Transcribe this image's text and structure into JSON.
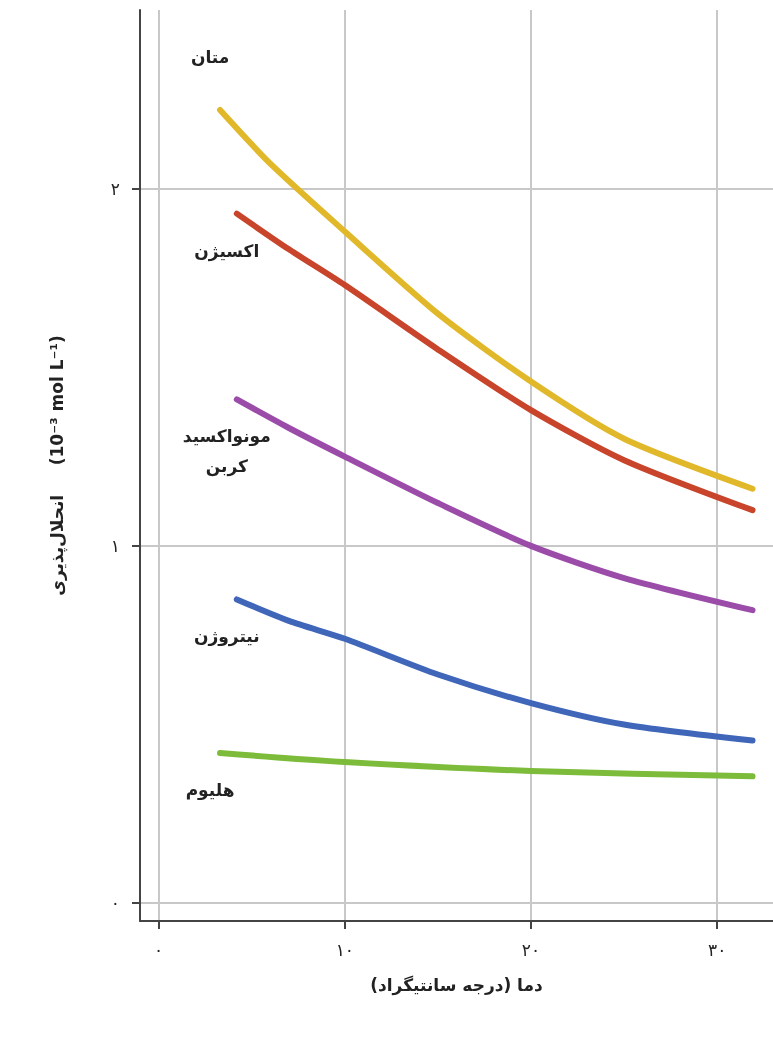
{
  "chart_data": {
    "type": "line",
    "xlabel": "دما (درجه سانتیگراد)",
    "ylabel": "انحلال‌پذیری     (10⁻³ mol L⁻¹)",
    "xlim": [
      -1,
      33
    ],
    "ylim": [
      -0.05,
      2.5
    ],
    "xticks": [
      {
        "value": 0,
        "label": "۰"
      },
      {
        "value": 10,
        "label": "۱۰"
      },
      {
        "value": 20,
        "label": "۲۰"
      },
      {
        "value": 30,
        "label": "۳۰"
      }
    ],
    "yticks": [
      {
        "value": 0,
        "label": "۰"
      },
      {
        "value": 1,
        "label": "۱"
      },
      {
        "value": 2,
        "label": "۲"
      }
    ],
    "grid": true,
    "marker": "none",
    "line_style": "solid",
    "series": [
      {
        "name": "متان",
        "color": "#e0b82a",
        "x": [
          3.3,
          6,
          10,
          15,
          20,
          25,
          31.9
        ],
        "values": [
          2.22,
          2.07,
          1.88,
          1.65,
          1.46,
          1.3,
          1.16
        ]
      },
      {
        "name": "اکسیژن",
        "color": "#c8442a",
        "x": [
          4.2,
          7,
          10,
          15,
          20,
          25,
          31.9
        ],
        "values": [
          1.93,
          1.83,
          1.73,
          1.55,
          1.38,
          1.24,
          1.1
        ]
      },
      {
        "name": "مونواکسید کربن",
        "color": "#9b4ca8",
        "x": [
          4.2,
          7,
          10,
          15,
          20,
          25,
          31.9
        ],
        "values": [
          1.41,
          1.33,
          1.25,
          1.12,
          1.0,
          0.91,
          0.82
        ]
      },
      {
        "name": "نیتروژن",
        "color": "#3f66b8",
        "x": [
          4.2,
          7,
          10,
          15,
          20,
          25,
          31.9
        ],
        "values": [
          0.85,
          0.79,
          0.74,
          0.64,
          0.56,
          0.5,
          0.455
        ]
      },
      {
        "name": "هلیوم",
        "color": "#7dbb3a",
        "x": [
          3.3,
          10,
          20,
          31.9
        ],
        "values": [
          0.42,
          0.395,
          0.37,
          0.355
        ]
      }
    ]
  }
}
